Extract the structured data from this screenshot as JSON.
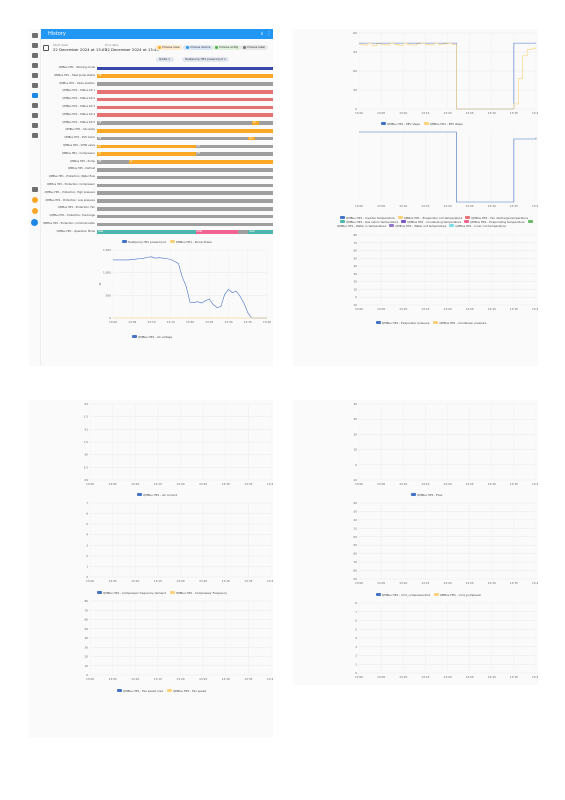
{
  "app": {
    "title": "History",
    "colors": {
      "accent": "#2196f3",
      "orange": "#f9a825",
      "red": "#e57373",
      "grey": "#9e9e9e",
      "blue": "#4472c4",
      "dark_blue": "#3949ab",
      "green": "#4db6ac",
      "pink": "#f06292"
    }
  },
  "sidebar": {
    "icons": [
      "menu-icon",
      "dashboard-icon",
      "map-icon",
      "person-icon",
      "energy-icon",
      "logbook-icon",
      "history-icon",
      "media-icon",
      "todo-icon",
      "calendar-icon",
      "settings-icon",
      "developer-tools-icon",
      "notifications-icon",
      "notifications-icon",
      "account-avatar"
    ]
  },
  "range": {
    "start_label": "Start date",
    "start_value": "22 December 2024 at 13:05",
    "end_label": "End date",
    "end_value": "22 December 2024 at 13:45"
  },
  "chips": [
    "Choose area",
    "Choose device",
    "Choose entity",
    "Choose label"
  ],
  "targets": [
    "Qalita",
    "Heatpump HP1 powerinput"
  ],
  "timeline": {
    "rows": [
      {
        "label": "QMBus HP1 - Working mode",
        "segs": [
          {
            "c": "dark_blue",
            "w": 100,
            "t": ""
          }
        ]
      },
      {
        "label": "QMBus HP1 - Heat pump status",
        "segs": [
          {
            "c": "orange",
            "w": 100,
            "t": "Off"
          }
        ]
      },
      {
        "label": "QMBus HP1 - Valve position",
        "segs": [
          {
            "c": "grey",
            "w": 100,
            "t": ""
          }
        ]
      },
      {
        "label": "QMBus HP1 - Status bit 1",
        "segs": [
          {
            "c": "red",
            "w": 100,
            "t": ""
          }
        ]
      },
      {
        "label": "QMBus HP1 - Status bit 2",
        "segs": [
          {
            "c": "red",
            "w": 100,
            "t": ""
          }
        ]
      },
      {
        "label": "QMBus HP1 - Status bit 3",
        "segs": [
          {
            "c": "red",
            "w": 100,
            "t": ""
          }
        ]
      },
      {
        "label": "QMBus HP1 - Status bit 4",
        "segs": [
          {
            "c": "red",
            "w": 100,
            "t": ""
          }
        ]
      },
      {
        "label": "QMBus HP1 - Status bit 5",
        "segs": [
          {
            "c": "grey",
            "w": 88,
            "t": "Off"
          },
          {
            "c": "orange",
            "w": 4,
            "t": "On"
          },
          {
            "c": "grey",
            "w": 8,
            "t": ""
          }
        ]
      },
      {
        "label": "QMBus HP1 - SG ready",
        "segs": [
          {
            "c": "orange",
            "w": 100,
            "t": ""
          }
        ]
      },
      {
        "label": "QMBus HP1 - EVU block",
        "segs": [
          {
            "c": "grey",
            "w": 86,
            "t": "Off"
          },
          {
            "c": "orange",
            "w": 4,
            "t": "On"
          },
          {
            "c": "grey",
            "w": 10,
            "t": ""
          }
        ]
      },
      {
        "label": "QMBus HP1 - DHW valve",
        "segs": [
          {
            "c": "orange",
            "w": 56,
            "t": "On"
          },
          {
            "c": "grey",
            "w": 44,
            "t": "Off"
          }
        ]
      },
      {
        "label": "QMBus HP1 - Compressor",
        "segs": [
          {
            "c": "orange",
            "w": 56,
            "t": "On"
          },
          {
            "c": "grey",
            "w": 44,
            "t": "Off"
          }
        ]
      },
      {
        "label": "QMBus HP1 - Pump",
        "segs": [
          {
            "c": "grey",
            "w": 18,
            "t": "Off"
          },
          {
            "c": "orange",
            "w": 82,
            "t": "On"
          }
        ]
      },
      {
        "label": "QMBus HP1 - Defrost",
        "segs": [
          {
            "c": "grey",
            "w": 100,
            "t": ""
          }
        ]
      },
      {
        "label": "QMBus HP1 - Protection: Water flow",
        "segs": [
          {
            "c": "grey",
            "w": 100,
            "t": ""
          }
        ]
      },
      {
        "label": "QMBus HP1 - Protection: Compressor",
        "segs": [
          {
            "c": "grey",
            "w": 100,
            "t": ""
          }
        ]
      },
      {
        "label": "QMBus HP1 - Protection: High pressure",
        "segs": [
          {
            "c": "grey",
            "w": 100,
            "t": ""
          }
        ]
      },
      {
        "label": "QMBus HP1 - Protection: Low pressure",
        "segs": [
          {
            "c": "grey",
            "w": 100,
            "t": ""
          }
        ]
      },
      {
        "label": "QMBus HP1 - Protection: Fan",
        "segs": [
          {
            "c": "grey",
            "w": 100,
            "t": ""
          }
        ]
      },
      {
        "label": "QMBus HP1 - Protection: Discharge",
        "segs": [
          {
            "c": "grey",
            "w": 100,
            "t": ""
          }
        ]
      },
      {
        "label": "QMBus HP1 - Protection: Communication",
        "segs": [
          {
            "c": "grey",
            "w": 100,
            "t": ""
          }
        ]
      },
      {
        "label": "QMBus HP1 - Operation Mode",
        "segs": [
          {
            "c": "green",
            "w": 56,
            "t": "Heat"
          },
          {
            "c": "pink",
            "w": 24,
            "t": "DHW"
          },
          {
            "c": "grey",
            "w": 6,
            "t": ""
          },
          {
            "c": "green",
            "w": 14,
            "t": "Heat"
          }
        ]
      }
    ]
  },
  "chart_data": [
    {
      "type": "line",
      "panel": "p1",
      "legend": [
        "Heatpump HP1 powerinput",
        "QMBus HP1 - Pump Power"
      ],
      "ylabel": "W",
      "ylim": [
        0,
        1500
      ],
      "yticks": [
        "1,500",
        "1,000",
        "500",
        "0"
      ],
      "xticks": [
        "13:00",
        "13:05",
        "13:10",
        "13:15",
        "13:20",
        "13:25",
        "13:30",
        "13:35",
        "13:40"
      ],
      "x": [
        0,
        1,
        2,
        3,
        4,
        5,
        6,
        7,
        8,
        9,
        10,
        11,
        12,
        13,
        14,
        15,
        16,
        17,
        18,
        19,
        20,
        21,
        22,
        23,
        24,
        25,
        26,
        27,
        28,
        29,
        30,
        31,
        32,
        33,
        34,
        35,
        36,
        37,
        38,
        39,
        40
      ],
      "series": [
        {
          "name": "Heatpump HP1 powerinput",
          "color": "blue",
          "values": [
            1280,
            1280,
            1280,
            1280,
            1280,
            1290,
            1300,
            1310,
            1320,
            1340,
            1350,
            1320,
            1330,
            1320,
            1310,
            1290,
            1250,
            1200,
            900,
            700,
            350,
            340,
            360,
            330,
            380,
            420,
            300,
            230,
            250,
            520,
            630,
            560,
            590,
            480,
            330,
            120,
            0,
            0,
            0,
            0,
            0
          ]
        },
        {
          "name": "QMBus HP1 - Pump Power",
          "color": "orange",
          "values": [
            0,
            0,
            0,
            0,
            0,
            0,
            0,
            0,
            0,
            0,
            0,
            0,
            0,
            0,
            0,
            0,
            0,
            0,
            0,
            0,
            0,
            0,
            0,
            0,
            0,
            0,
            0,
            0,
            0,
            0,
            0,
            0,
            0,
            0,
            0,
            0,
            0,
            0,
            0,
            0,
            0
          ]
        }
      ],
      "footer_legend": [
        "QMBus HP1 - AC voltage"
      ]
    },
    {
      "type": "line",
      "panel": "p2-top",
      "legend": [
        "QMBus HP1 - EEV steps",
        "QMBus HP1 - EEV steps"
      ],
      "ylabel": "Step",
      "ylim": [
        0,
        600
      ],
      "yticks": [
        "600",
        "450",
        "300",
        "150",
        "0"
      ],
      "xticks": [
        "13:00",
        "13:05",
        "13:10",
        "13:15",
        "13:20",
        "13:25",
        "13:30",
        "13:35",
        "13:40"
      ],
      "x": [
        0,
        1,
        2,
        3,
        4,
        5,
        6,
        7,
        8,
        9,
        10,
        11,
        12,
        13,
        14,
        15,
        16,
        17,
        18,
        19,
        20,
        21,
        22,
        23,
        24,
        25,
        26,
        27,
        28,
        29,
        30,
        31,
        32,
        33,
        34,
        35,
        36,
        37,
        38,
        39,
        40
      ],
      "series": [
        {
          "name": "QMBus HP1 - EEV steps",
          "color": "blue",
          "values": [
            520,
            520,
            520,
            520,
            520,
            520,
            520,
            520,
            520,
            520,
            520,
            520,
            520,
            520,
            520,
            520,
            520,
            520,
            520,
            520,
            520,
            520,
            0,
            0,
            0,
            0,
            0,
            0,
            0,
            0,
            0,
            0,
            0,
            0,
            0,
            520,
            520,
            520,
            520,
            520,
            520
          ]
        },
        {
          "name": "QMBus HP1 - EEV steps",
          "color": "orange",
          "values": [
            510,
            505,
            520,
            500,
            515,
            510,
            505,
            520,
            510,
            500,
            520,
            510,
            505,
            515,
            520,
            510,
            505,
            520,
            510,
            515,
            520,
            510,
            0,
            0,
            0,
            0,
            0,
            0,
            0,
            0,
            0,
            0,
            0,
            0,
            0,
            40,
            240,
            420,
            470,
            480,
            490
          ]
        }
      ]
    },
    {
      "type": "line",
      "panel": "p2-mid",
      "legend": [
        "QMBus HP1 - Defrost"
      ],
      "ylim": [
        0,
        1
      ],
      "xticks": [
        "13:00",
        "13:05",
        "13:10",
        "13:15",
        "13:20",
        "13:25",
        "13:30",
        "13:35",
        "13:40"
      ],
      "x": [
        0,
        1,
        2,
        3,
        4,
        5,
        6,
        7,
        8,
        9,
        10,
        11,
        12,
        13,
        14,
        15,
        16,
        17,
        18,
        19,
        20,
        21,
        22,
        23,
        24,
        25,
        26,
        27,
        28,
        29,
        30,
        31,
        32,
        33,
        34,
        35,
        36,
        37,
        38,
        39,
        40
      ],
      "series": [
        {
          "name": "QMBus HP1 - Defrost",
          "color": "blue",
          "values": [
            1,
            1,
            1,
            1,
            1,
            1,
            1,
            1,
            1,
            1,
            1,
            1,
            1,
            1,
            1,
            1,
            1,
            1,
            1,
            1,
            1,
            1,
            0,
            0,
            0,
            0,
            0,
            0,
            0,
            0,
            0,
            0,
            0,
            0,
            0,
            0.9,
            0.9,
            0.9,
            0.9,
            0.9,
            0.92
          ]
        }
      ]
    },
    {
      "type": "line",
      "panel": "p2-temps",
      "legend": [
        "QMBus HP1 - Inverter temperature",
        "QMBus HP1 - Evaporator coil temperature",
        "QMBus HP1 - Fan discharge temperature",
        "QMBus HP1 - Gas return temperature",
        "QMBus HP1 - Condensing temperature",
        "QMBus HP1 - Evaporating temperature",
        "QMBus HP1 - Water in temperature",
        "QMBus HP1 - Water out temperature",
        "QMBus HP1 - Inner coil temperature"
      ],
      "ylabel": "°C",
      "ylim": [
        -10,
        80
      ],
      "yticks": [
        "80",
        "70",
        "60",
        "50",
        "40",
        "30",
        "20",
        "10",
        "0",
        "-10"
      ],
      "xticks": [
        "13:00",
        "13:05",
        "13:10",
        "13:15",
        "13:20",
        "13:25",
        "13:30",
        "13:35",
        "13:40"
      ]
    },
    {
      "type": "line",
      "panel": "p2-pressure",
      "footer_legend": [
        "QMBus HP1 - Evaporator pressure",
        "QMBus HP1 - Condenser pressure"
      ]
    },
    {
      "type": "line",
      "panel": "p3-volt",
      "ylabel": "V",
      "ylim": [
        228,
        232
      ],
      "yticks": [
        "232",
        "231.5",
        "231",
        "230.5",
        "230",
        "229.5",
        "229"
      ],
      "xticks": [
        "13:00",
        "13:05",
        "13:10",
        "13:15",
        "13:20",
        "13:25",
        "13:30",
        "13:35",
        "13:40"
      ],
      "series": [
        {
          "name": "QMBus HP1 - AC current",
          "color": "blue"
        }
      ],
      "footer_legend": [
        "QMBus HP1 - AC current"
      ]
    },
    {
      "type": "line",
      "panel": "p3-current",
      "ylabel": "A",
      "ylim": [
        0,
        7
      ],
      "yticks": [
        "7",
        "6",
        "5",
        "4",
        "3",
        "2",
        "1",
        "0"
      ],
      "xticks": [
        "13:00",
        "13:05",
        "13:10",
        "13:15",
        "13:20",
        "13:25",
        "13:30",
        "13:35",
        "13:40"
      ],
      "footer_legend": [
        "QMBus HP1 - Compressor frequency demand",
        "QMBus HP1 - Compressor Frequency"
      ]
    },
    {
      "type": "line",
      "panel": "p3-fan",
      "ylabel": "Hz",
      "ylim": [
        0,
        80
      ],
      "yticks": [
        "80",
        "70",
        "60",
        "50",
        "40",
        "30",
        "20",
        "10",
        "0"
      ],
      "xticks": [
        "13:00",
        "13:05",
        "13:10",
        "13:15",
        "13:20",
        "13:25",
        "13:30",
        "13:35",
        "13:40"
      ],
      "footer_legend": [
        "QMBus HP1 - Fan speed max",
        "QMBus HP1 - Fan speed"
      ]
    },
    {
      "type": "line",
      "panel": "p4-top",
      "ylabel": "°C",
      "ylim": [
        -10,
        40
      ],
      "yticks": [
        "40",
        "30",
        "20",
        "10",
        "0",
        "-10"
      ],
      "xticks": [
        "13:00",
        "13:05",
        "13:10",
        "13:15",
        "13:20",
        "13:25",
        "13:30",
        "13:35",
        "13:40"
      ],
      "footer_legend": [
        "QMBus HP1 - Flow"
      ]
    },
    {
      "type": "line",
      "panel": "p4-flow",
      "ylabel": "L/h",
      "ylim": [
        1150,
        1240
      ],
      "yticks": [
        "1,240",
        "1,230",
        "1,220",
        "1,210",
        "1,200",
        "1,190",
        "1,180",
        "1,170",
        "1,160",
        "1,150"
      ],
      "xticks": [
        "13:00",
        "13:05",
        "13:10",
        "13:15",
        "13:20",
        "13:25",
        "13:30",
        "13:35",
        "13:40"
      ],
      "footer_legend": [
        "QMBus HP1 - cmd_compressorlost",
        "QMBus HP1 - cmd_pumplevel"
      ]
    },
    {
      "type": "line",
      "panel": "p4-cmd",
      "ylim": [
        0,
        8
      ],
      "yticks": [
        "8",
        "7",
        "6",
        "5",
        "4",
        "3",
        "2",
        "1",
        "0"
      ],
      "xticks": [
        "13:00",
        "13:05",
        "13:10",
        "13:15",
        "13:20",
        "13:25",
        "13:30",
        "13:35",
        "13:40"
      ]
    }
  ]
}
